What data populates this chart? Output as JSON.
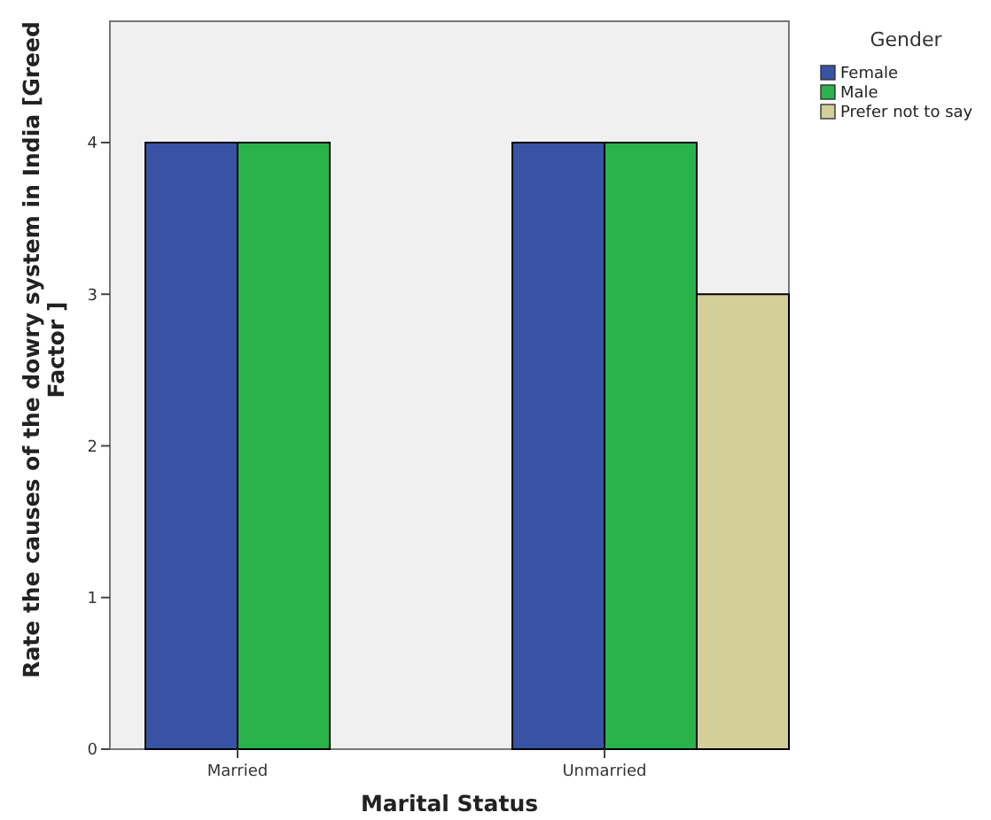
{
  "chart_data": {
    "type": "bar",
    "xlabel": "Marital Status",
    "ylabel": "Rate the causes of the dowry system in India  [Greed Factor ]",
    "legend_title": "Gender",
    "categories": [
      "Married",
      "Unmarried"
    ],
    "series": [
      {
        "name": "Female",
        "color": "#3953a4",
        "values": [
          4,
          4
        ]
      },
      {
        "name": "Male",
        "color": "#2ab34b",
        "values": [
          4,
          4
        ]
      },
      {
        "name": "Prefer not to say",
        "color": "#d4cf99",
        "values": [
          null,
          3
        ]
      }
    ],
    "ylim": [
      0,
      4.8
    ],
    "yticks": [
      0,
      1,
      2,
      3,
      4
    ],
    "grid": false,
    "legend": "top right"
  }
}
